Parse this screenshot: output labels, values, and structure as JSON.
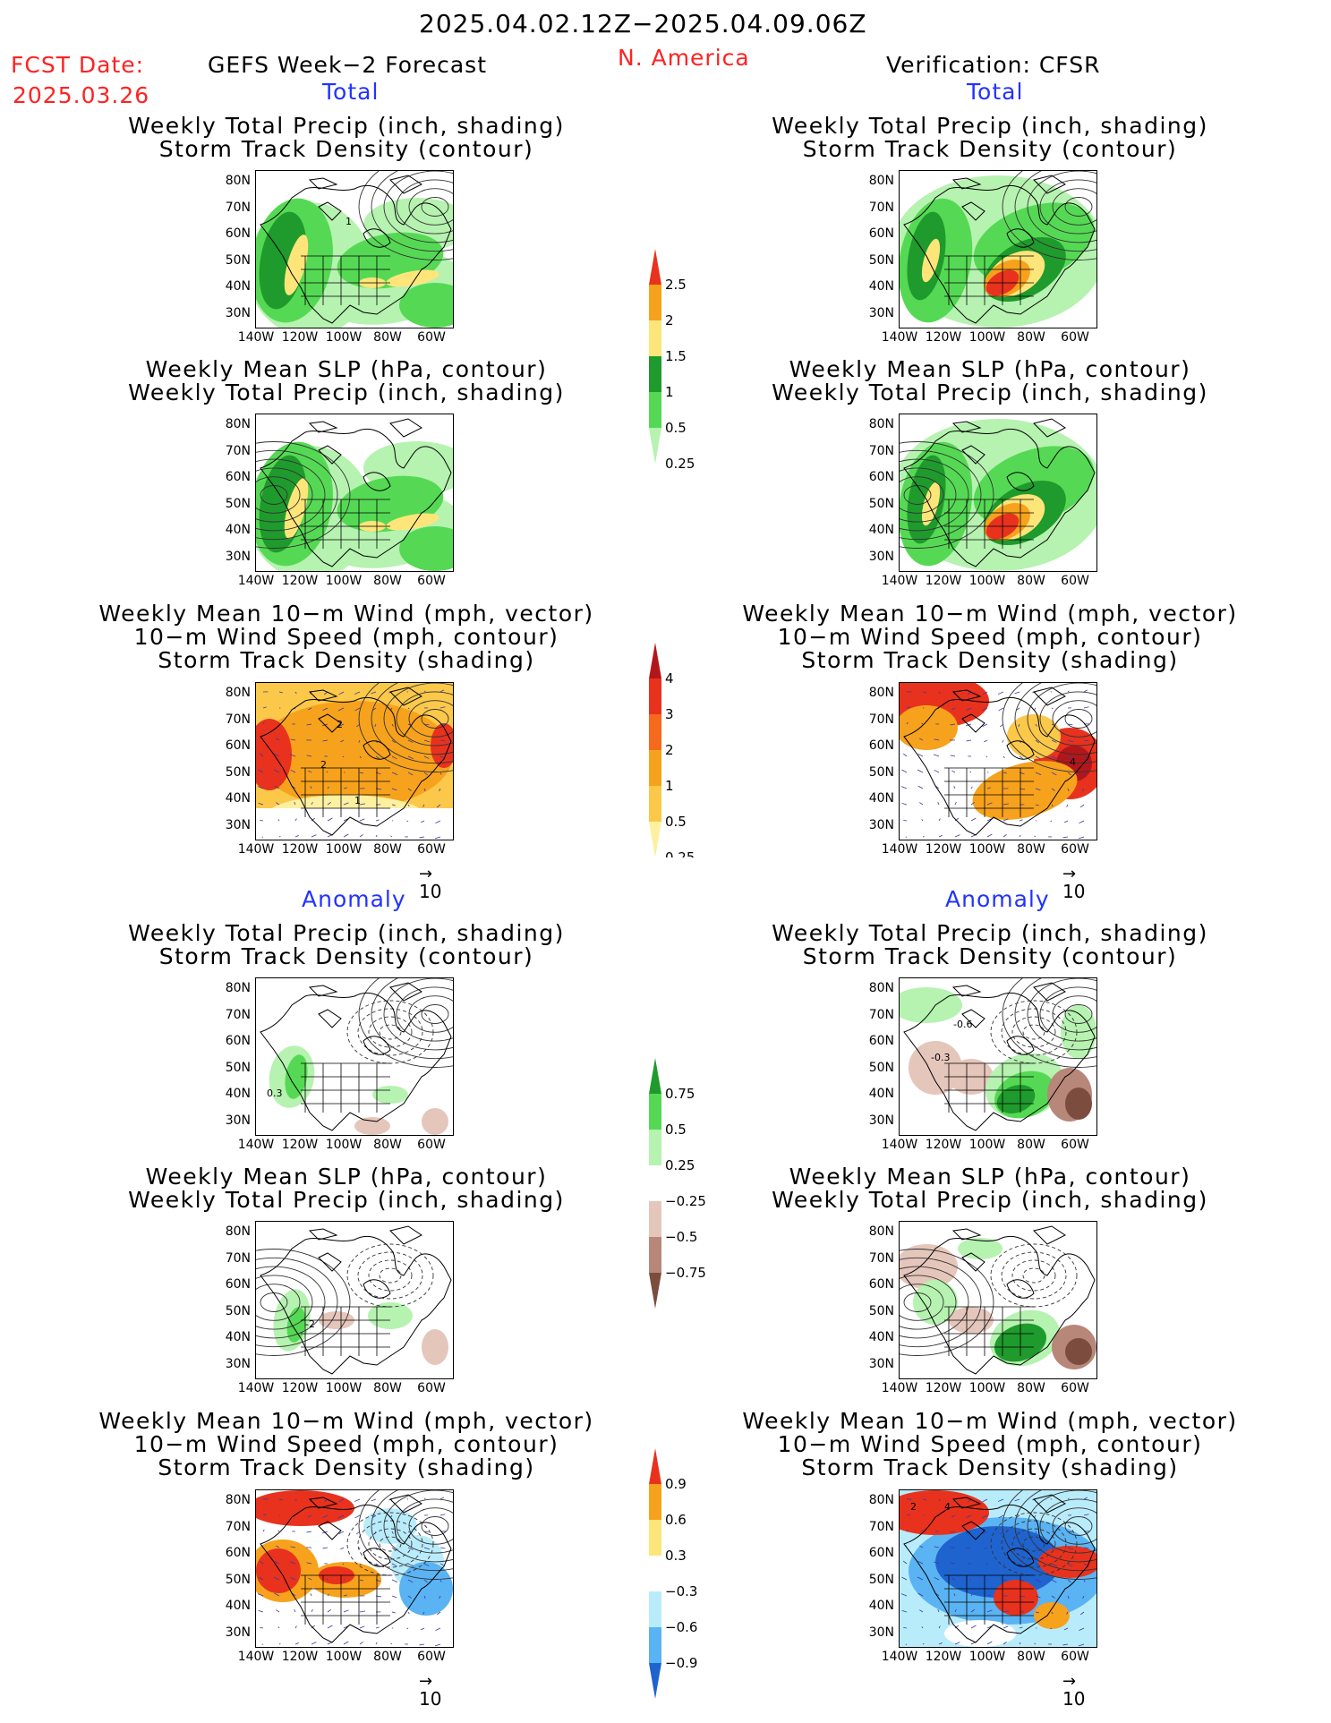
{
  "header": {
    "title": "2025.04.02.12Z−2025.04.09.06Z",
    "fcst_label": "FCST Date:",
    "fcst_date": "2025.03.26",
    "left_title": "GEFS Week−2 Forecast",
    "region": "N. America",
    "right_title": "Verification: CFSR"
  },
  "sections": [
    {
      "label": "Total"
    },
    {
      "label": "Anomaly"
    }
  ],
  "panel_titles": {
    "precip_storm": [
      "Weekly Total Precip (inch, shading)",
      "Storm Track Density (contour)"
    ],
    "slp_precip": [
      "Weekly Mean SLP (hPa, contour)",
      "Weekly Total Precip (inch, shading)"
    ],
    "wind_storm": [
      "Weekly Mean 10−m Wind (mph, vector)",
      "10−m Wind Speed (mph, contour)",
      "Storm Track Density (shading)"
    ]
  },
  "axes": {
    "lat_ticks": [
      "80N",
      "70N",
      "60N",
      "50N",
      "40N",
      "30N"
    ],
    "lon_ticks": [
      "140W",
      "120W",
      "100W",
      "80W",
      "60W"
    ]
  },
  "vector_ref": "10",
  "colorbars": {
    "precip_total": {
      "labels": [
        "2.5",
        "2",
        "1.5",
        "1",
        "0.5",
        "0.25"
      ],
      "colors": [
        "#e8321e",
        "#f7a21c",
        "#fde57a",
        "#1f9a2c",
        "#55d954",
        "#b6f2b0"
      ]
    },
    "storm_total": {
      "labels": [
        "4",
        "3",
        "2",
        "1",
        "0.5",
        "0.25"
      ],
      "colors": [
        "#b3161a",
        "#e8321e",
        "#f56a1c",
        "#f7a21c",
        "#fbc84a",
        "#fdf0a0"
      ]
    },
    "precip_anom": {
      "labels": [
        "0.75",
        "0.5",
        "0.25",
        "−0.25",
        "−0.5",
        "−0.75"
      ],
      "colors": [
        "#1f9a2c",
        "#55d954",
        "#b6f2b0",
        "#ffffff",
        "#e5c6bb",
        "#b7877a",
        "#7c4c3e"
      ]
    },
    "storm_anom": {
      "labels": [
        "0.9",
        "0.6",
        "0.3",
        "−0.3",
        "−0.6",
        "−0.9"
      ],
      "colors": [
        "#e8321e",
        "#f7a21c",
        "#fde57a",
        "#ffffff",
        "#b9ecfb",
        "#5ab3f3",
        "#1f63cf"
      ]
    }
  },
  "map_labels": {
    "fc_total_precip": "1",
    "fc_total_wind": [
      "2",
      "2",
      "1"
    ],
    "ob_total_wind": "4",
    "fc_anom_precip": "0.3",
    "ob_anom_precip": [
      "-0.6",
      "-0.3"
    ],
    "fc_anom_slp": "-2",
    "ob_anom_wind": [
      "2",
      "4"
    ]
  }
}
